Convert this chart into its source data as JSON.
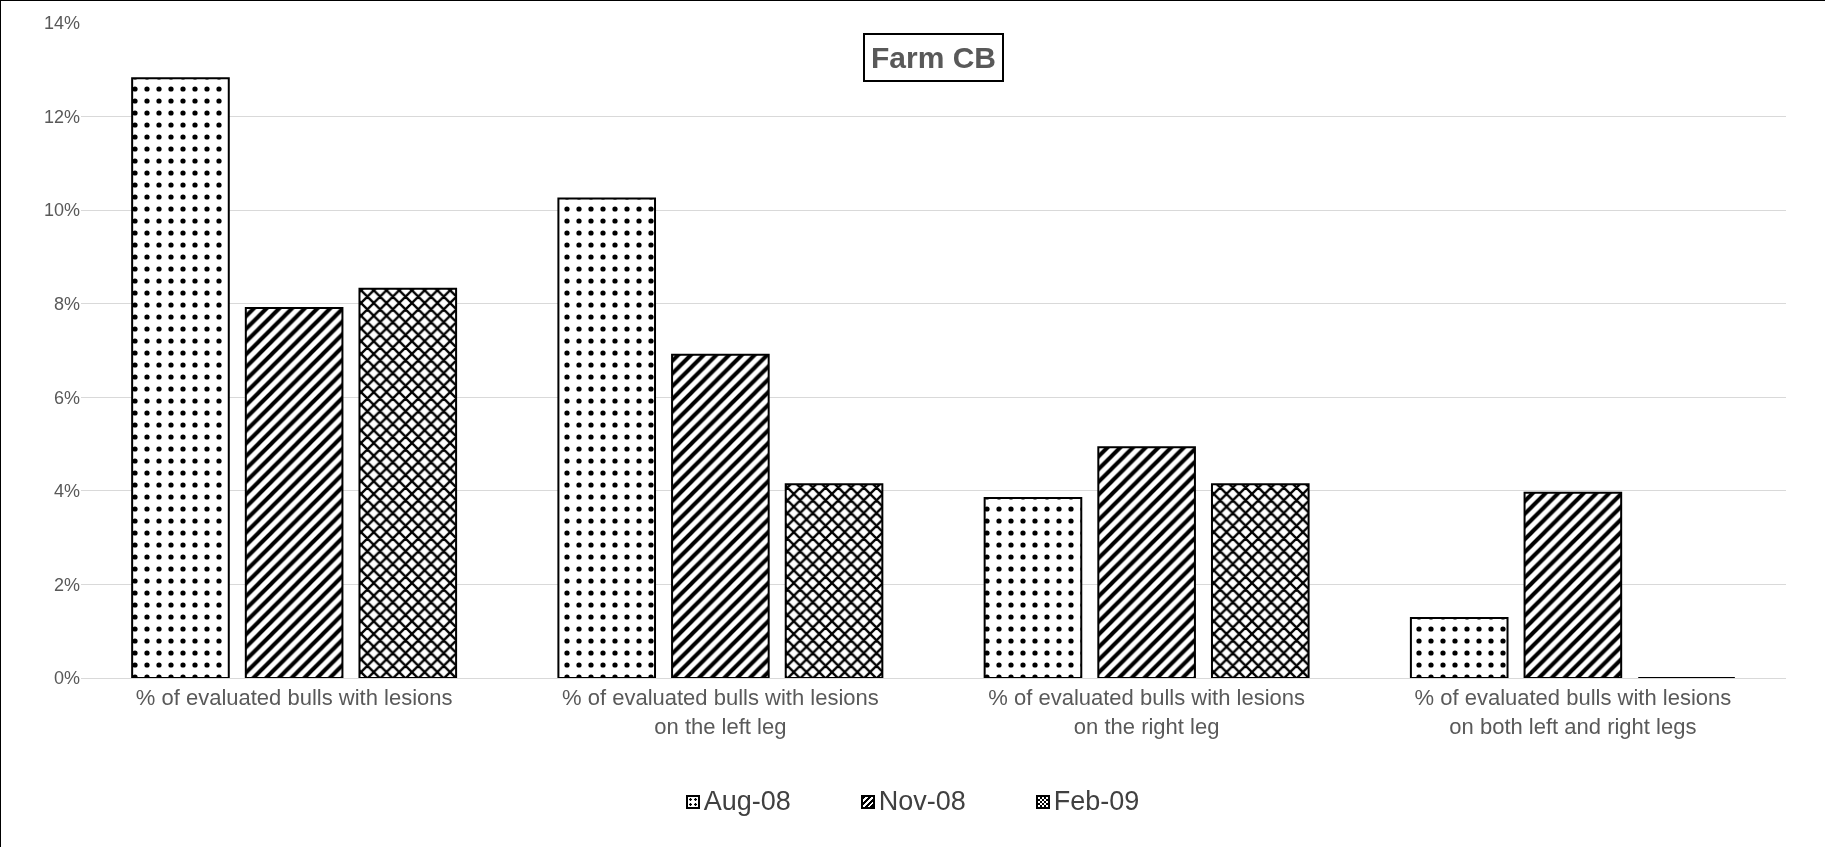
{
  "chart_data": {
    "type": "bar",
    "title": "Farm CB",
    "categories": [
      "% of evaluated bulls with lesions",
      "% of evaluated bulls with lesions on the left leg",
      "% of evaluated bulls with lesions on the right leg",
      "% of evaluated bulls with lesions on both left and right legs"
    ],
    "series": [
      {
        "name": "Aug-08",
        "color": "#000000",
        "values": [
          12.82,
          10.25,
          3.85,
          1.28
        ]
      },
      {
        "name": "Nov-08",
        "color": "#000000",
        "values": [
          7.91,
          6.91,
          4.93,
          3.96
        ]
      },
      {
        "name": "Feb-09",
        "color": "#000000",
        "values": [
          8.32,
          4.14,
          4.14,
          0
        ]
      }
    ],
    "ylim": [
      0,
      14
    ],
    "yticks": [
      {
        "value": 0,
        "label": "0%"
      },
      {
        "value": 2,
        "label": "2%"
      },
      {
        "value": 4,
        "label": "4%"
      },
      {
        "value": 6,
        "label": "6%"
      },
      {
        "value": 8,
        "label": "8%"
      },
      {
        "value": 10,
        "label": "10%"
      },
      {
        "value": 12,
        "label": "12%"
      },
      {
        "value": 14,
        "label": "14%"
      }
    ],
    "grid": "y",
    "legend": "bottom"
  }
}
